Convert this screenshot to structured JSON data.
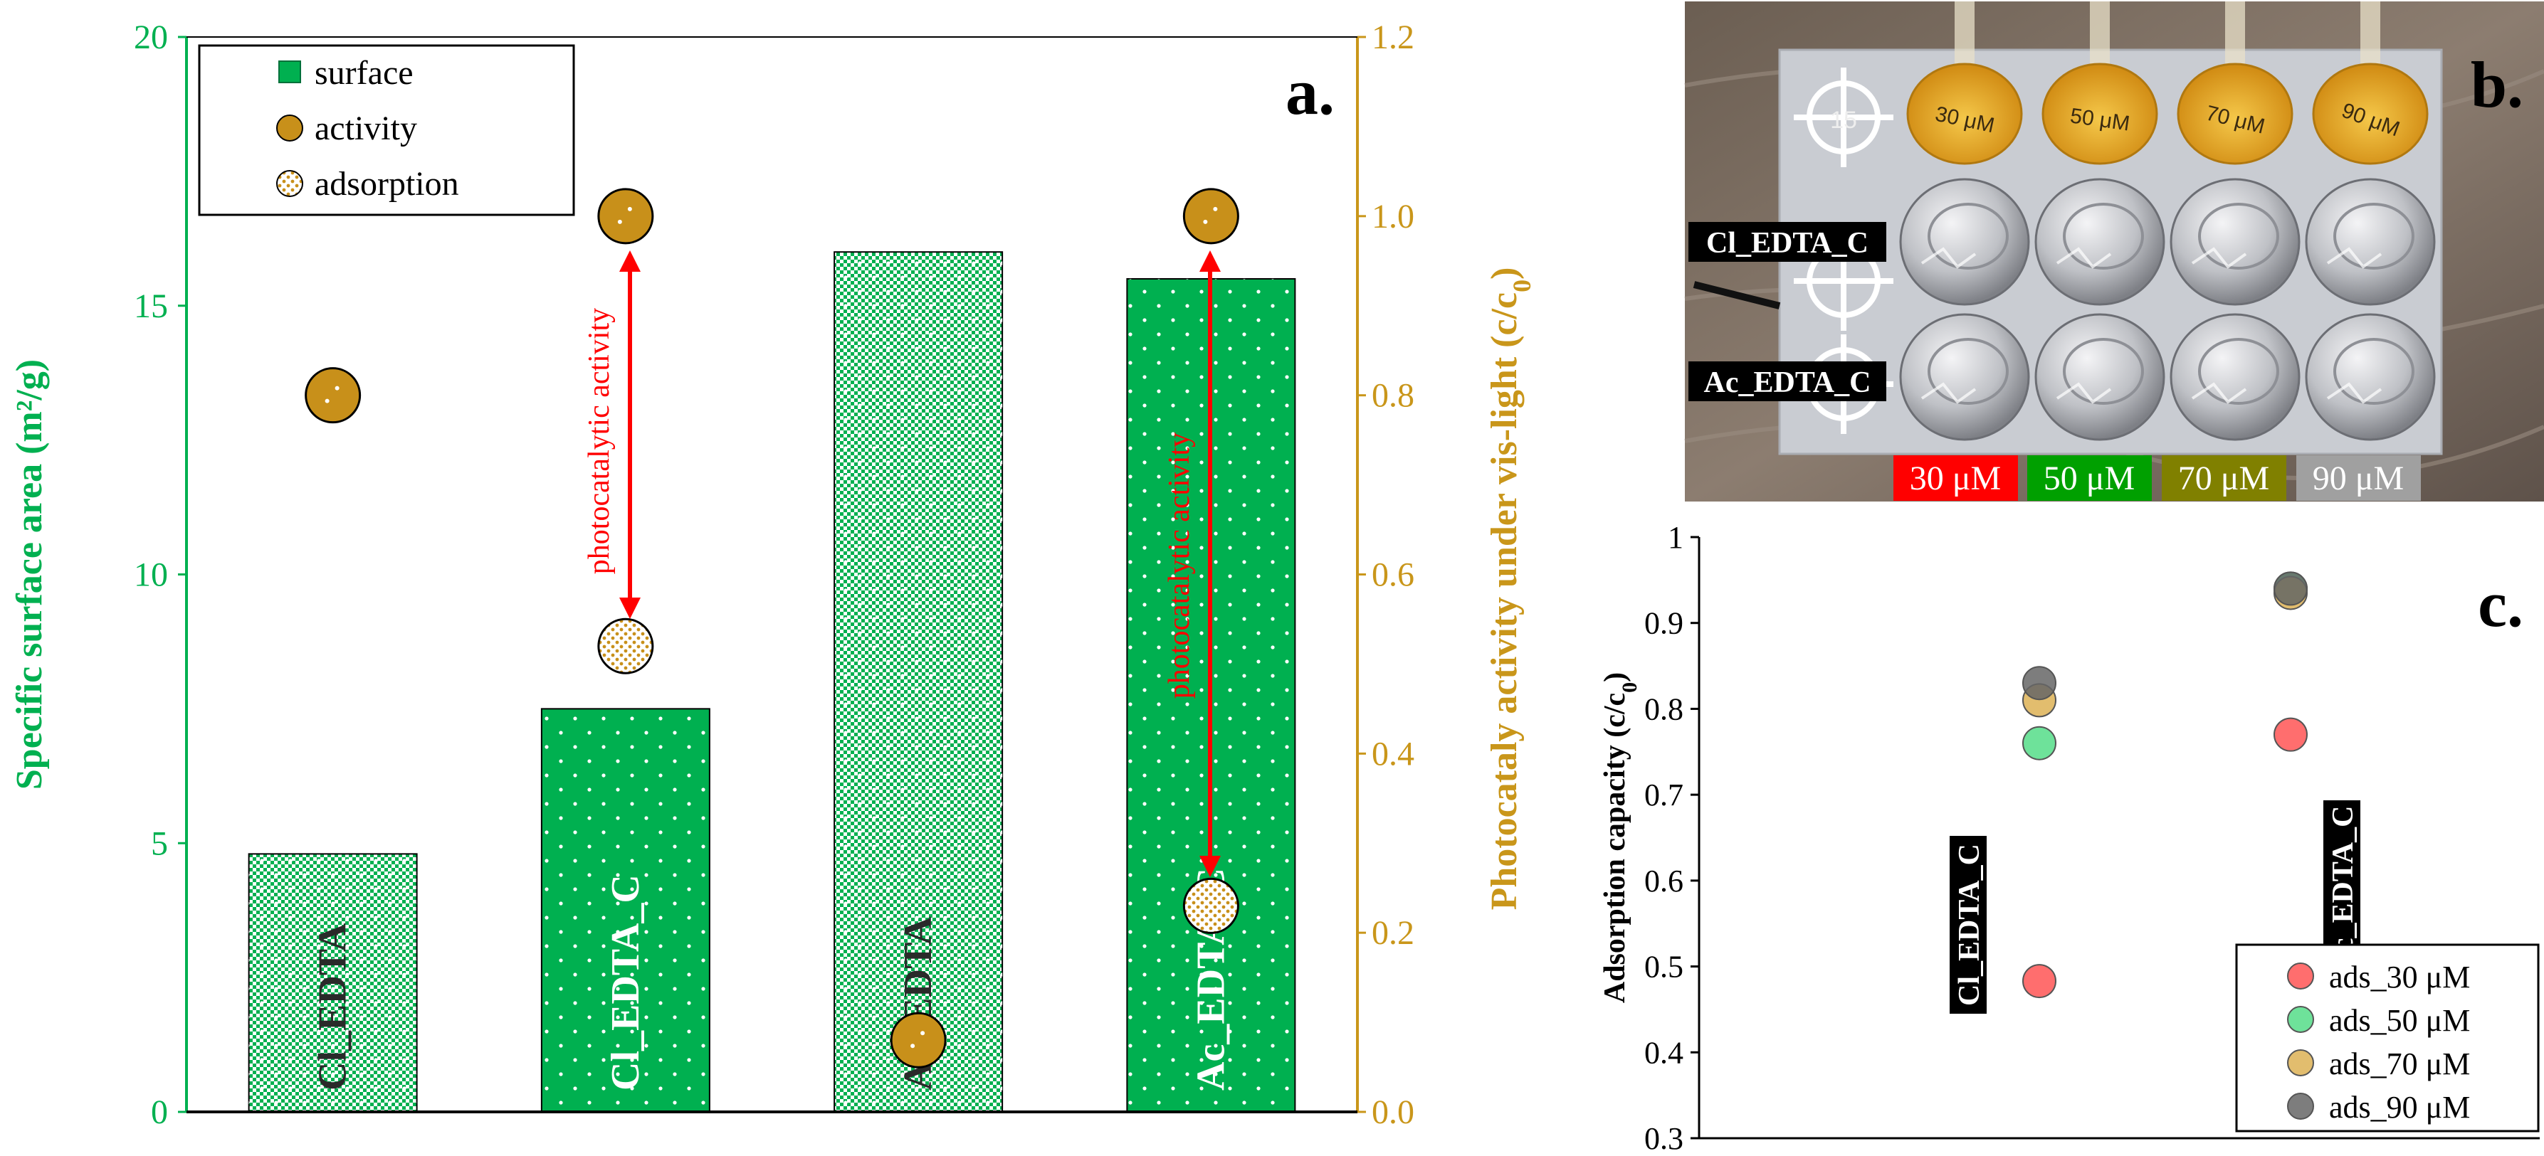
{
  "colors": {
    "green": "#00b050",
    "gold": "#c9961a",
    "activity_fill": "#c8901a",
    "red": "#ff0000",
    "dark_olive": "#808000"
  },
  "chart_data": [
    {
      "panel": "a.",
      "type": "bar",
      "categories": [
        "Cl_EDTA",
        "Cl_EDTA_C",
        "Ac_EDTA",
        "Ac_EDTA_C"
      ],
      "bar_styles": [
        "pattern",
        "solid",
        "pattern",
        "solid"
      ],
      "series": [
        {
          "name": "surface",
          "axis": "left",
          "values": [
            4.8,
            7.5,
            16.0,
            15.5
          ]
        },
        {
          "name": "activity",
          "axis": "right",
          "values": [
            0.8,
            1.0,
            0.08,
            1.0
          ]
        },
        {
          "name": "adsorption",
          "axis": "right",
          "values": [
            null,
            0.52,
            null,
            0.23
          ]
        }
      ],
      "ylabel": "Specific surface area (m²/g)",
      "ylim": [
        0,
        20
      ],
      "yticks": [
        "0",
        "5",
        "10",
        "15",
        "20"
      ],
      "ytick_values": [
        0,
        5,
        10,
        15,
        20
      ],
      "y2label_parts": [
        "Photocataly activity under vis-light (c/c",
        "0",
        ")"
      ],
      "y2lim": [
        0,
        1.2
      ],
      "y2ticks": [
        "0.0",
        "0.2",
        "0.4",
        "0.6",
        "0.8",
        "1.0",
        "1.2"
      ],
      "y2tick_values": [
        0,
        0.2,
        0.4,
        0.6,
        0.8,
        1.0,
        1.2
      ],
      "legend": [
        "surface",
        "activity",
        "adsorption"
      ],
      "annotations": [
        "photocatalytic activity",
        "photocatalytic activity"
      ]
    },
    {
      "panel": "c.",
      "type": "scatter",
      "categories": [
        "Cl_EDTA_C",
        "Ac_EDTA_C"
      ],
      "series": [
        {
          "name": "ads_30 μM",
          "color": "#ff5555",
          "values": [
            0.483,
            0.77
          ]
        },
        {
          "name": "ads_50 μM",
          "color": "#55dd88",
          "values": [
            0.76,
            0.94
          ]
        },
        {
          "name": "ads_70 μM",
          "color": "#ddb155",
          "values": [
            0.81,
            0.935
          ]
        },
        {
          "name": "ads_90 μM",
          "color": "#666666",
          "values": [
            0.83,
            0.94
          ]
        }
      ],
      "ylabel_parts": [
        "Adsorption capacity (c/c",
        "0",
        ")"
      ],
      "ylim": [
        0.3,
        1.0
      ],
      "yticks": [
        "0.3",
        "0.4",
        "0.5",
        "0.6",
        "0.7",
        "0.8",
        "0.9",
        "1"
      ],
      "ytick_values": [
        0.3,
        0.4,
        0.5,
        0.6,
        0.7,
        0.8,
        0.9,
        1.0
      ]
    }
  ],
  "photo": {
    "panel": "b.",
    "row_labels": [
      "Cl_EDTA_C",
      "Ac_EDTA_C"
    ],
    "concentrations": [
      "30 μM",
      "50 μM",
      "70 μM",
      "90 μM"
    ],
    "concentration_colors": [
      "#ff0000",
      "#00a000",
      "#808000",
      "#a0a0a0"
    ],
    "flask_labels": [
      "30 μM",
      "50 μM",
      "70 μM",
      "90 μM"
    ],
    "target_mark": "15"
  }
}
